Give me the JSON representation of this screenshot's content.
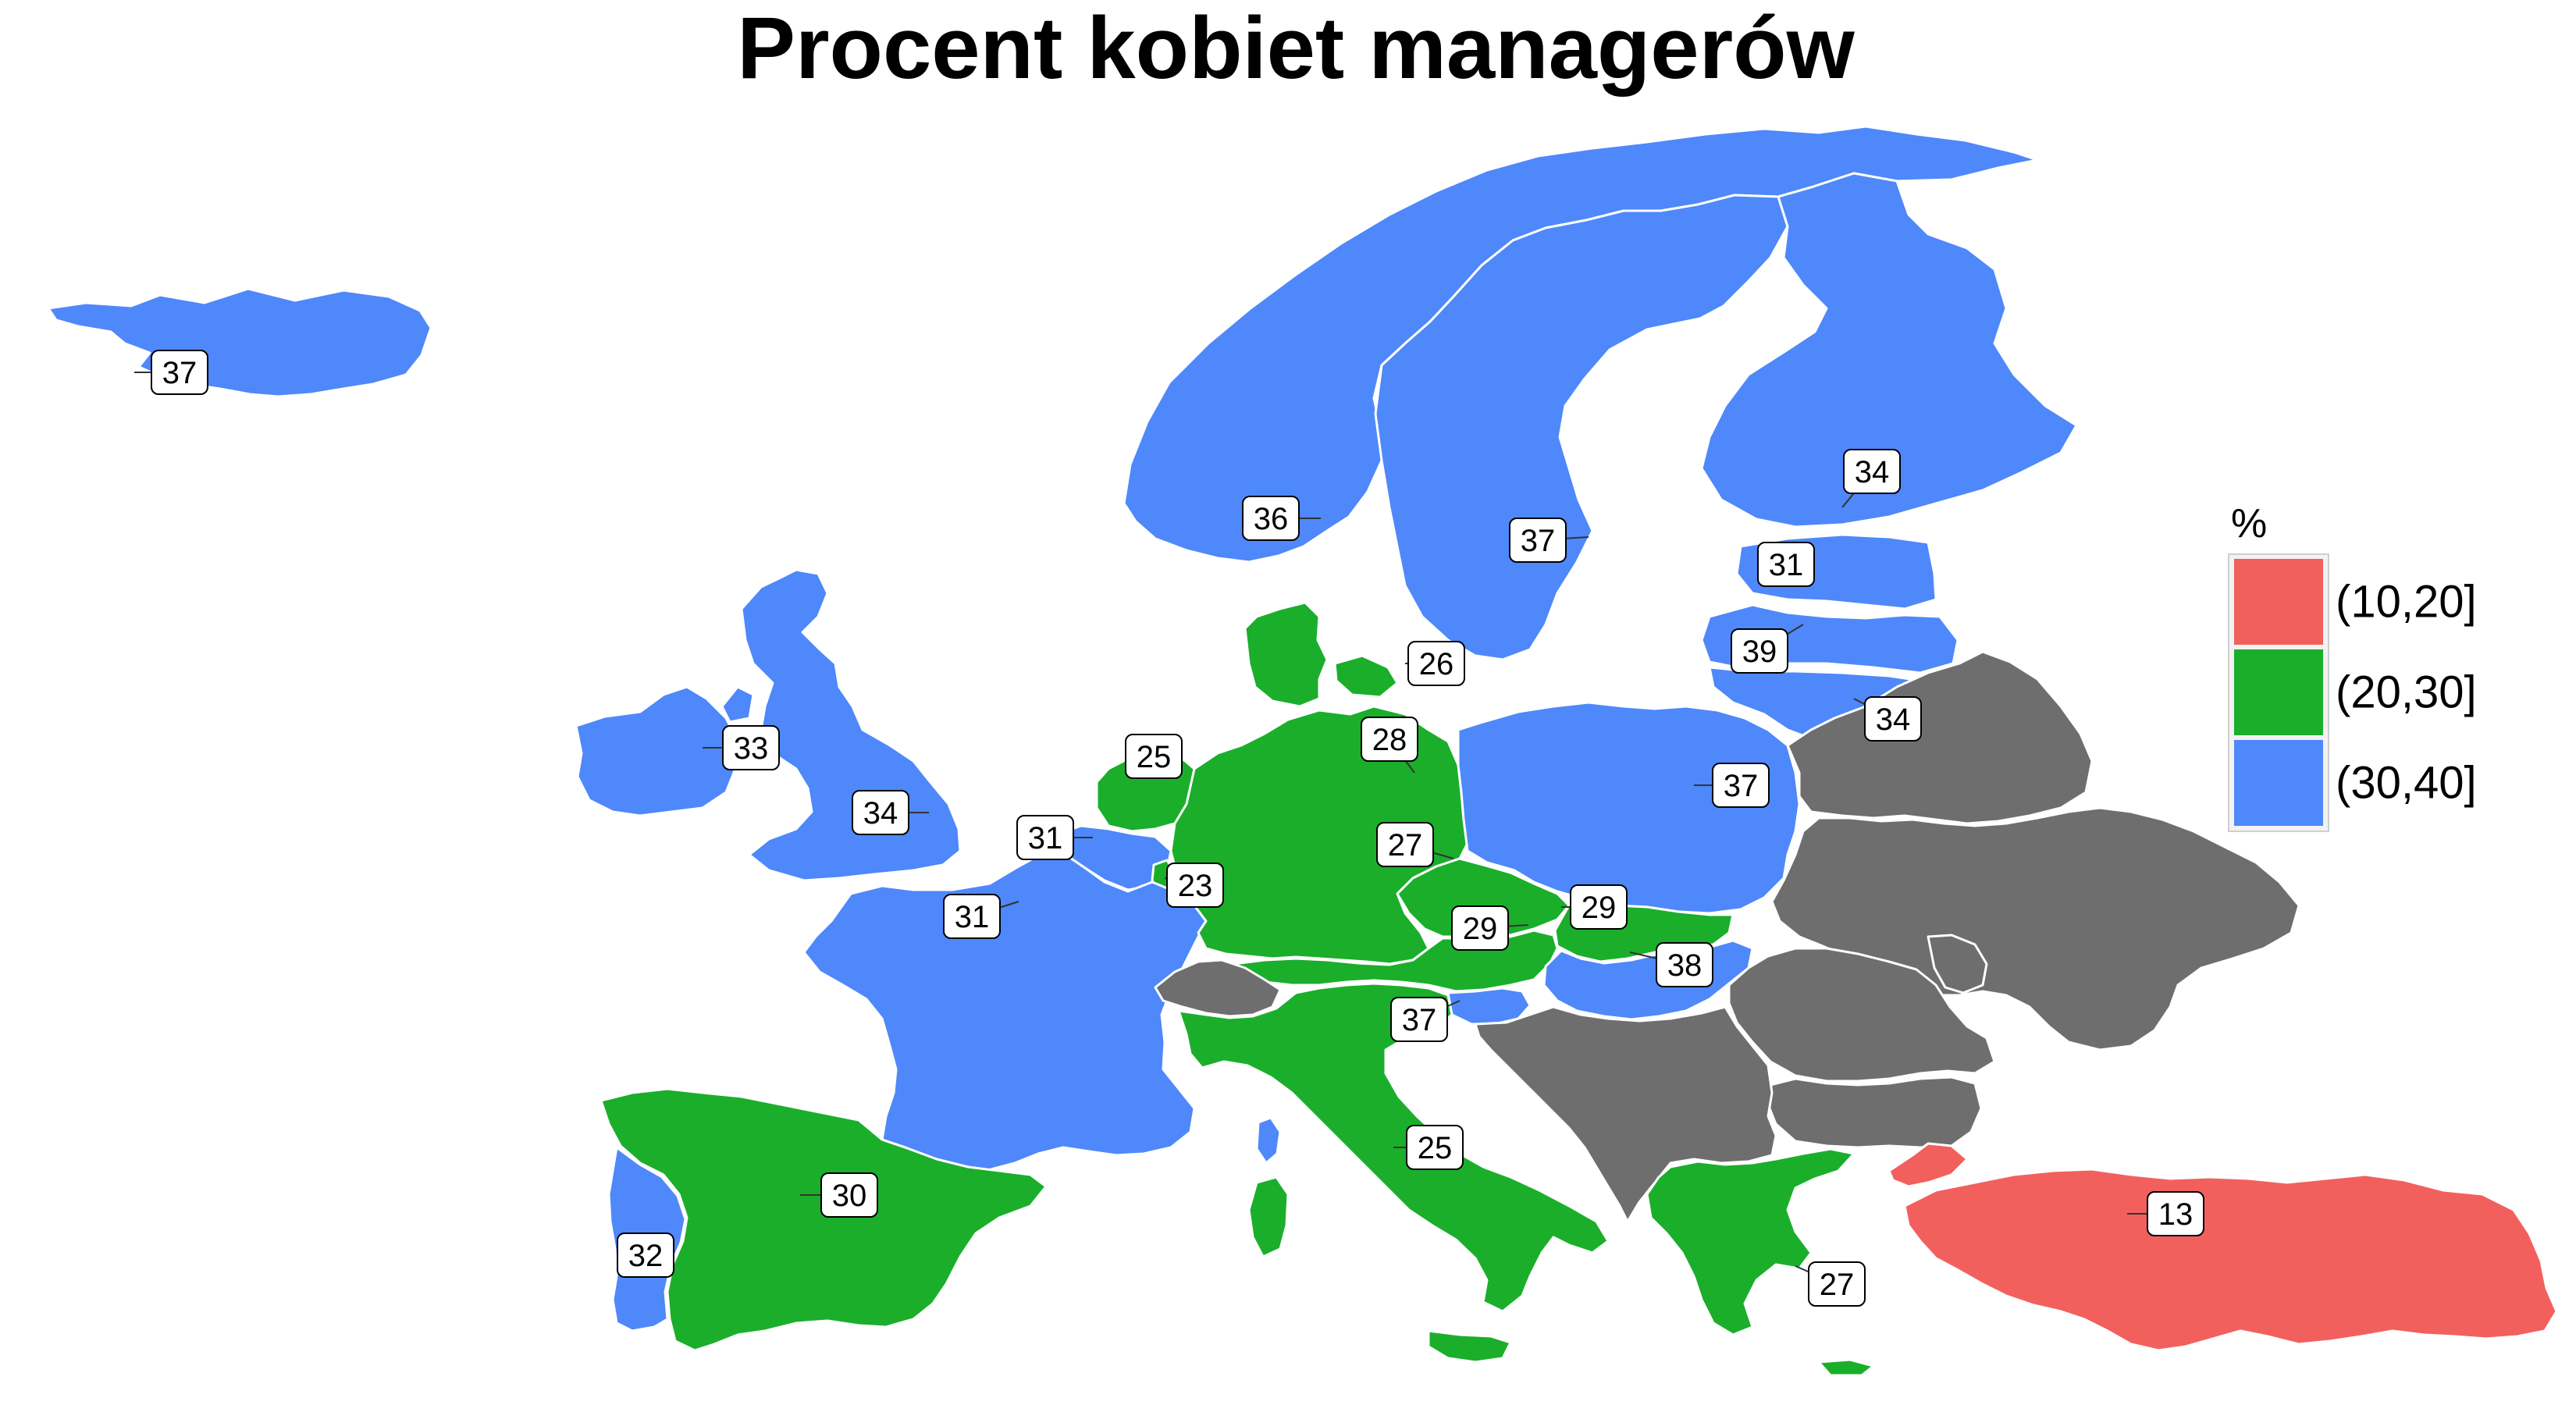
{
  "title": "Procent kobiet managerów",
  "legend": {
    "title": "%",
    "items": [
      {
        "label": "(10,20]",
        "color": "#F2605E"
      },
      {
        "label": "(20,30]",
        "color": "#1BAE2B"
      },
      {
        "label": "(30,40]",
        "color": "#4E88FA"
      }
    ]
  },
  "colors": {
    "no_data": "#6E6E6E",
    "border": "#FFFFFF",
    "sea": "#FFFFFF"
  },
  "map_data": {
    "countries": [
      {
        "name": "Iceland",
        "value": 37
      },
      {
        "name": "Ireland",
        "value": 33
      },
      {
        "name": "United Kingdom",
        "value": 34
      },
      {
        "name": "Norway",
        "value": 36
      },
      {
        "name": "Sweden",
        "value": 37
      },
      {
        "name": "Finland",
        "value": 34
      },
      {
        "name": "Estonia",
        "value": 31
      },
      {
        "name": "Latvia",
        "value": 39
      },
      {
        "name": "Lithuania",
        "value": 34
      },
      {
        "name": "Denmark",
        "value": 26
      },
      {
        "name": "Netherlands",
        "value": 25
      },
      {
        "name": "Belgium",
        "value": 31
      },
      {
        "name": "Luxembourg",
        "value": 23
      },
      {
        "name": "France",
        "value": 31
      },
      {
        "name": "Germany",
        "value": 28
      },
      {
        "name": "Poland",
        "value": 37
      },
      {
        "name": "Czechia",
        "value": 27
      },
      {
        "name": "Slovakia",
        "value": 29
      },
      {
        "name": "Austria",
        "value": 29
      },
      {
        "name": "Hungary",
        "value": 38
      },
      {
        "name": "Slovenia",
        "value": 37
      },
      {
        "name": "Italy",
        "value": 25
      },
      {
        "name": "Spain",
        "value": 30
      },
      {
        "name": "Portugal",
        "value": 32
      },
      {
        "name": "Greece",
        "value": 27
      },
      {
        "name": "Turkey",
        "value": 13
      }
    ]
  }
}
